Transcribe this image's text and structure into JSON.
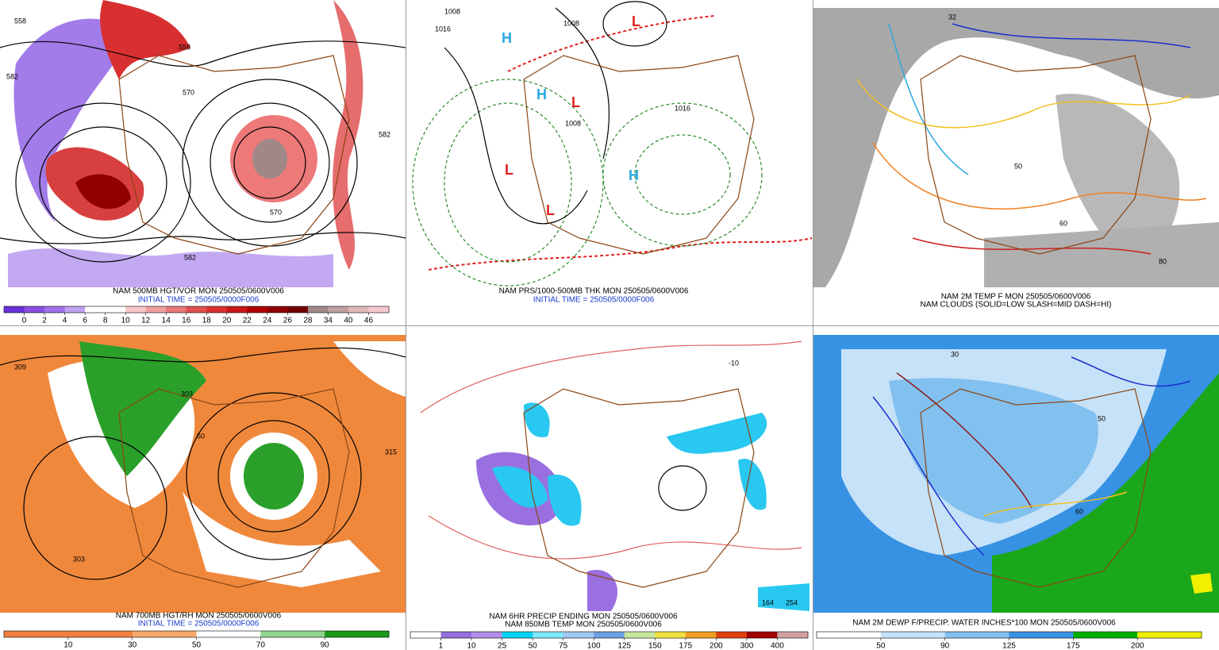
{
  "panels": [
    {
      "caption": [
        "NAM 500MB HGT/VOR MON 250505/0600V006",
        "INITIAL TIME = 250505/0000F006"
      ],
      "labels": [
        "558",
        "582",
        "558",
        "570",
        "570",
        "582",
        "582"
      ],
      "colorbar": {
        "labels": [
          0,
          2,
          4,
          6,
          8,
          10,
          12,
          14,
          16,
          18,
          20,
          22,
          24,
          26,
          28,
          34,
          40,
          46
        ],
        "colors": [
          "#6a30d8",
          "#8a50e0",
          "#a070e8",
          "#c0a0f0",
          "#ffffff",
          "#ffffff",
          "#f8c8c8",
          "#f0a0a0",
          "#e87878",
          "#e05050",
          "#d83030",
          "#c81818",
          "#b00000",
          "#900000",
          "#700000",
          "#a08888",
          "#c0a0a0",
          "#e0b8b8",
          "#f8c8d0"
        ]
      }
    },
    {
      "caption": [
        "NAM PRS/1000-500MB THK MON 250505/0600V006",
        "INITIAL TIME = 250505/0000F006"
      ],
      "labels": [
        "1008",
        "1016",
        "1008",
        "1016",
        "1008",
        "H",
        "L"
      ]
    },
    {
      "caption": [
        "NAM 2M TEMP F MON 250505/0600V006",
        "NAM CLOUDS (SOLID=LOW SLASH=MID DASH=HI)"
      ],
      "labels": [
        "32",
        "50",
        "60",
        "80"
      ]
    },
    {
      "caption": [
        "NAM 700MB HGT/RH MON 250505/0600V006",
        "INITIAL TIME = 250505/0000F006"
      ],
      "labels": [
        "309",
        "303",
        "50",
        "315",
        "303"
      ],
      "colorbar": {
        "labels": [
          10,
          30,
          50,
          70,
          90
        ],
        "colors": [
          "#f0803c",
          "#f0803c",
          "#f5a86a",
          "#ffffff",
          "#8fd48f",
          "#1a9a1a"
        ]
      }
    },
    {
      "caption": [
        "NAM 6HR PRECIP ENDING MON 250505/0600V006",
        "NAM 850MB TEMP MON 250505/0600V006"
      ],
      "labels": [
        "164",
        "254",
        "-10"
      ],
      "colorbar": {
        "labels": [
          1,
          10,
          25,
          50,
          75,
          100,
          125,
          150,
          175,
          200,
          300,
          400
        ],
        "colors": [
          "#ffffff",
          "#9370db",
          "#b48ee8",
          "#00d5f5",
          "#80e8ff",
          "#a0c8f0",
          "#6ea0e0",
          "#c8e6a0",
          "#f0e040",
          "#f0a020",
          "#e04010",
          "#a00000",
          "#d0a0a0"
        ]
      }
    },
    {
      "caption": [
        "NAM 2M DEWP F/PRECIP. WATER INCHES*100 MON 250505/0600V006"
      ],
      "labels": [
        "30",
        "50",
        "60"
      ],
      "colorbar": {
        "labels": [
          50,
          90,
          125,
          175,
          200
        ],
        "colors": [
          "#ffffff",
          "#c6e2f8",
          "#82c0ef",
          "#3792e4",
          "#00b000",
          "#f0f000"
        ]
      }
    }
  ]
}
